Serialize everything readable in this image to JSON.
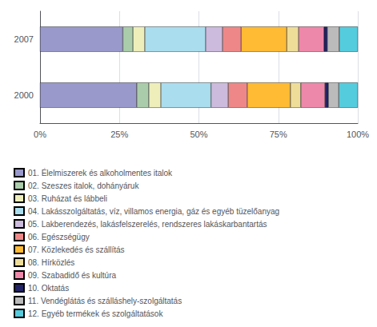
{
  "chart_data": {
    "type": "bar",
    "orientation": "horizontal",
    "stacked": true,
    "grid": true,
    "legend": "lower left",
    "categories": [
      "2007",
      "2000"
    ],
    "xlim": [
      0,
      100
    ],
    "xticks": [
      {
        "value": 0,
        "label": "0%"
      },
      {
        "value": 25,
        "label": "25%"
      },
      {
        "value": 50,
        "label": "50%"
      },
      {
        "value": 75,
        "label": "75%"
      },
      {
        "value": 100,
        "label": "100%"
      }
    ],
    "series": [
      {
        "name": "01. Élelmiszerek és alkoholmentes italok",
        "color": "#9999cc",
        "values": [
          26.0638297872,
          30.4347826087
        ]
      },
      {
        "name": "02. Szeszes italok, dohányáruk",
        "color": "#aaccaa",
        "values": [
          3.1914893617,
          3.8043478261
        ]
      },
      {
        "name": "03. Ruházat és lábbeli",
        "color": "#eeeebb",
        "values": [
          3.7234042553,
          3.8043478261
        ]
      },
      {
        "name": "04. Lakásszolgáltatás, víz, villamos energia, gáz és egyéb tüzelőanyag",
        "color": "#aaddee",
        "values": [
          19.1489361702,
          15.7608695652
        ]
      },
      {
        "name": "05. Lakberendezés, lakásfelszerelés, rendszeres lakáskarbantartás",
        "color": "#ccbbdd",
        "values": [
          5.3191489362,
          5.4347826087
        ]
      },
      {
        "name": "06. Egészségügy",
        "color": "#ee8888",
        "values": [
          5.8510638298,
          5.9782608696
        ]
      },
      {
        "name": "07. Közlekedés és szállítás",
        "color": "#ffbb33",
        "values": [
          14.3617021277,
          13.5869565217
        ]
      },
      {
        "name": "08. Hírközlés",
        "color": "#eedd99",
        "values": [
          3.7234042553,
          3.2608695652
        ]
      },
      {
        "name": "09. Szabadidő és kultúra",
        "color": "#ee88aa",
        "values": [
          7.9787234043,
          7.6086956522
        ]
      },
      {
        "name": "10. Oktatás",
        "color": "#222266",
        "values": [
          1.0638297872,
          1.0869565217
        ]
      },
      {
        "name": "11. Vendéglátás és szálláshely-szolgáltatás",
        "color": "#bbbbbb",
        "values": [
          3.7234042553,
          3.2608695652
        ]
      },
      {
        "name": "12. Egyéb termékek és szolgáltatások",
        "color": "#55ccdd",
        "values": [
          5.8510638298,
          5.9782608696
        ]
      }
    ]
  }
}
